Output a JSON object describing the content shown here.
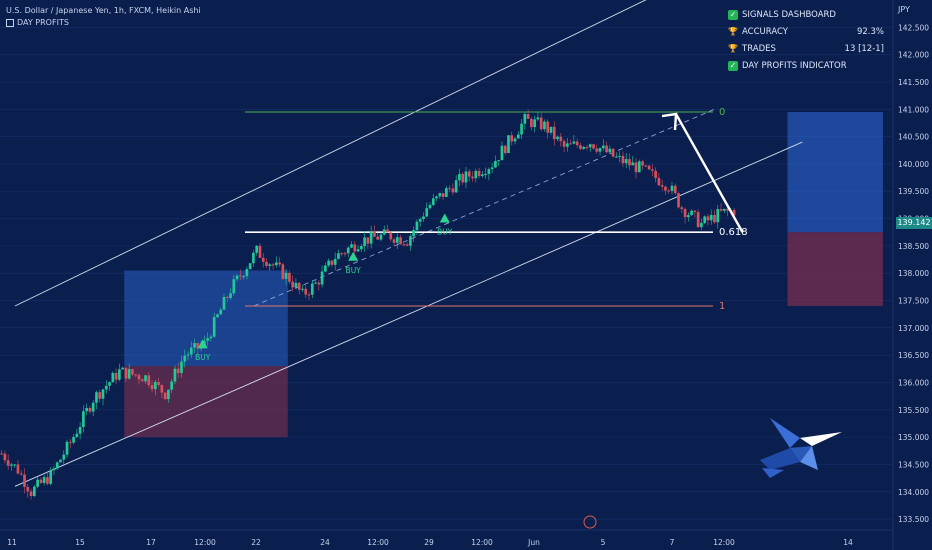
{
  "header": {
    "title": "U.S. Dollar / Japanese Yen, 1h, FXCM, Heikin Ashi",
    "indicator": "DAY PROFITS"
  },
  "dashboard": {
    "title": "SIGNALS DASHBOARD",
    "rows": [
      {
        "icon": "trophy-icon",
        "label": "ACCURACY",
        "value": "92.3%"
      },
      {
        "icon": "trophy-icon",
        "label": "TRADES",
        "value": "13 [12-1]"
      }
    ],
    "footer": "DAY PROFITS INDICATOR"
  },
  "axis": {
    "currency": "JPY",
    "last_price": "139.142"
  },
  "colors": {
    "background": "#0b1f4f",
    "bull": "#22c896",
    "bear": "#d8505c",
    "profit_zone": "#2a5fc4",
    "loss_zone": "#6b2d4e",
    "signal": "#2bd48f",
    "fib_top": "#4caf50",
    "fib_bottom": "#e0736b"
  },
  "chart_data": {
    "type": "candlestick",
    "style": "Heikin Ashi",
    "symbol": "USDJPY",
    "timeframe": "1h",
    "x_ticks": [
      "11",
      "15",
      "17",
      "12:00",
      "22",
      "24",
      "12:00",
      "29",
      "12:00",
      "Jun",
      "5",
      "7",
      "12:00",
      "14"
    ],
    "y_ticks": [
      "142.500",
      "142.000",
      "141.500",
      "141.000",
      "140.500",
      "140.000",
      "139.500",
      "139.000",
      "138.500",
      "138.000",
      "137.500",
      "137.000",
      "136.500",
      "136.000",
      "135.500",
      "135.000",
      "134.500",
      "134.000",
      "133.500"
    ],
    "ylim": [
      133.3,
      143.0
    ],
    "price_path": [
      [
        0,
        134.7
      ],
      [
        5,
        134.4
      ],
      [
        9,
        134.0
      ],
      [
        15,
        134.3
      ],
      [
        21,
        134.9
      ],
      [
        28,
        135.7
      ],
      [
        36,
        136.2
      ],
      [
        44,
        136.1
      ],
      [
        50,
        135.8
      ],
      [
        56,
        136.5
      ],
      [
        62,
        136.7
      ],
      [
        70,
        137.7
      ],
      [
        78,
        138.4
      ],
      [
        84,
        138.1
      ],
      [
        88,
        137.9
      ],
      [
        92,
        137.6
      ],
      [
        96,
        137.8
      ],
      [
        102,
        138.3
      ],
      [
        110,
        138.6
      ],
      [
        118,
        138.7
      ],
      [
        124,
        138.6
      ],
      [
        130,
        139.2
      ],
      [
        140,
        139.7
      ],
      [
        150,
        140.0
      ],
      [
        160,
        140.8
      ],
      [
        166,
        140.7
      ],
      [
        172,
        140.3
      ],
      [
        180,
        140.4
      ],
      [
        188,
        140.1
      ],
      [
        196,
        139.9
      ],
      [
        204,
        139.6
      ],
      [
        208,
        139.2
      ],
      [
        214,
        138.9
      ],
      [
        220,
        139.1
      ],
      [
        224,
        139.15
      ]
    ],
    "fib_levels": [
      {
        "label": "0",
        "price": 140.95
      },
      {
        "label": "0.618",
        "price": 138.75
      },
      {
        "label": "1",
        "price": 137.4
      }
    ],
    "signals": [
      {
        "label": "BUY",
        "bar": 62,
        "price": 136.7
      },
      {
        "label": "BUY",
        "bar": 108,
        "price": 138.3
      },
      {
        "label": "BUY",
        "bar": 136,
        "price": 139.0
      }
    ],
    "trade_box_1": {
      "bar_start": 38,
      "bar_end": 88,
      "entry": 136.3,
      "target": 138.05,
      "stop": 135.0
    },
    "trade_box_2": {
      "bar_start": 224,
      "bar_end": 270,
      "entry": 138.75,
      "target": 140.95,
      "stop": 137.4
    },
    "channel": {
      "upper": [
        [
          0,
          137.4
        ],
        [
          280,
          143.8
        ]
      ],
      "lower": [
        [
          0,
          134.1
        ],
        [
          305,
          140.4
        ]
      ],
      "mid": [
        [
          96,
          137.4
        ],
        [
          272,
          141.0
        ]
      ]
    }
  }
}
